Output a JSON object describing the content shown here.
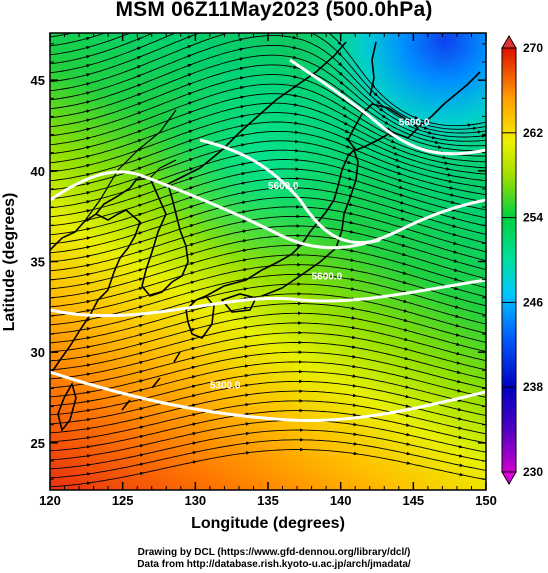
{
  "title": "MSM 06Z11May2023 (500.0hPa)",
  "chart_data": {
    "type": "map",
    "xlabel": "Longitude (degrees)",
    "ylabel": "Latitude  (degrees)",
    "xlim": [
      120,
      150
    ],
    "ylim": [
      22.4,
      47.6
    ],
    "xticks": [
      120,
      125,
      130,
      135,
      140,
      145,
      150
    ],
    "yticks": [
      25,
      30,
      35,
      40,
      45
    ],
    "colorbar": {
      "min": 230,
      "max": 270,
      "ticks": [
        230,
        238,
        246,
        254,
        262,
        270
      ],
      "colors": [
        "#d000d0",
        "#0000c0",
        "#0050ff",
        "#00c8ff",
        "#00e090",
        "#00d040",
        "#a0e000",
        "#f0f000",
        "#ffa000",
        "#ff4000",
        "#e01000"
      ]
    },
    "contour_labels": [
      {
        "text": "5300.0",
        "lon": 131.0,
        "lat": 28.0
      },
      {
        "text": "5600.0",
        "lon": 138.0,
        "lat": 34.0
      },
      {
        "text": "5600.0",
        "lon": 135.0,
        "lat": 39.0
      },
      {
        "text": "5600.0",
        "lon": 144.0,
        "lat": 42.5
      }
    ],
    "vector_field": "streamlines",
    "credits": [
      "Drawing by DCL (https://www.gfd-dennou.org/library/dcl/)",
      "Data from http://database.rish.kyoto-u.ac.jp/arch/jmadata/"
    ]
  }
}
